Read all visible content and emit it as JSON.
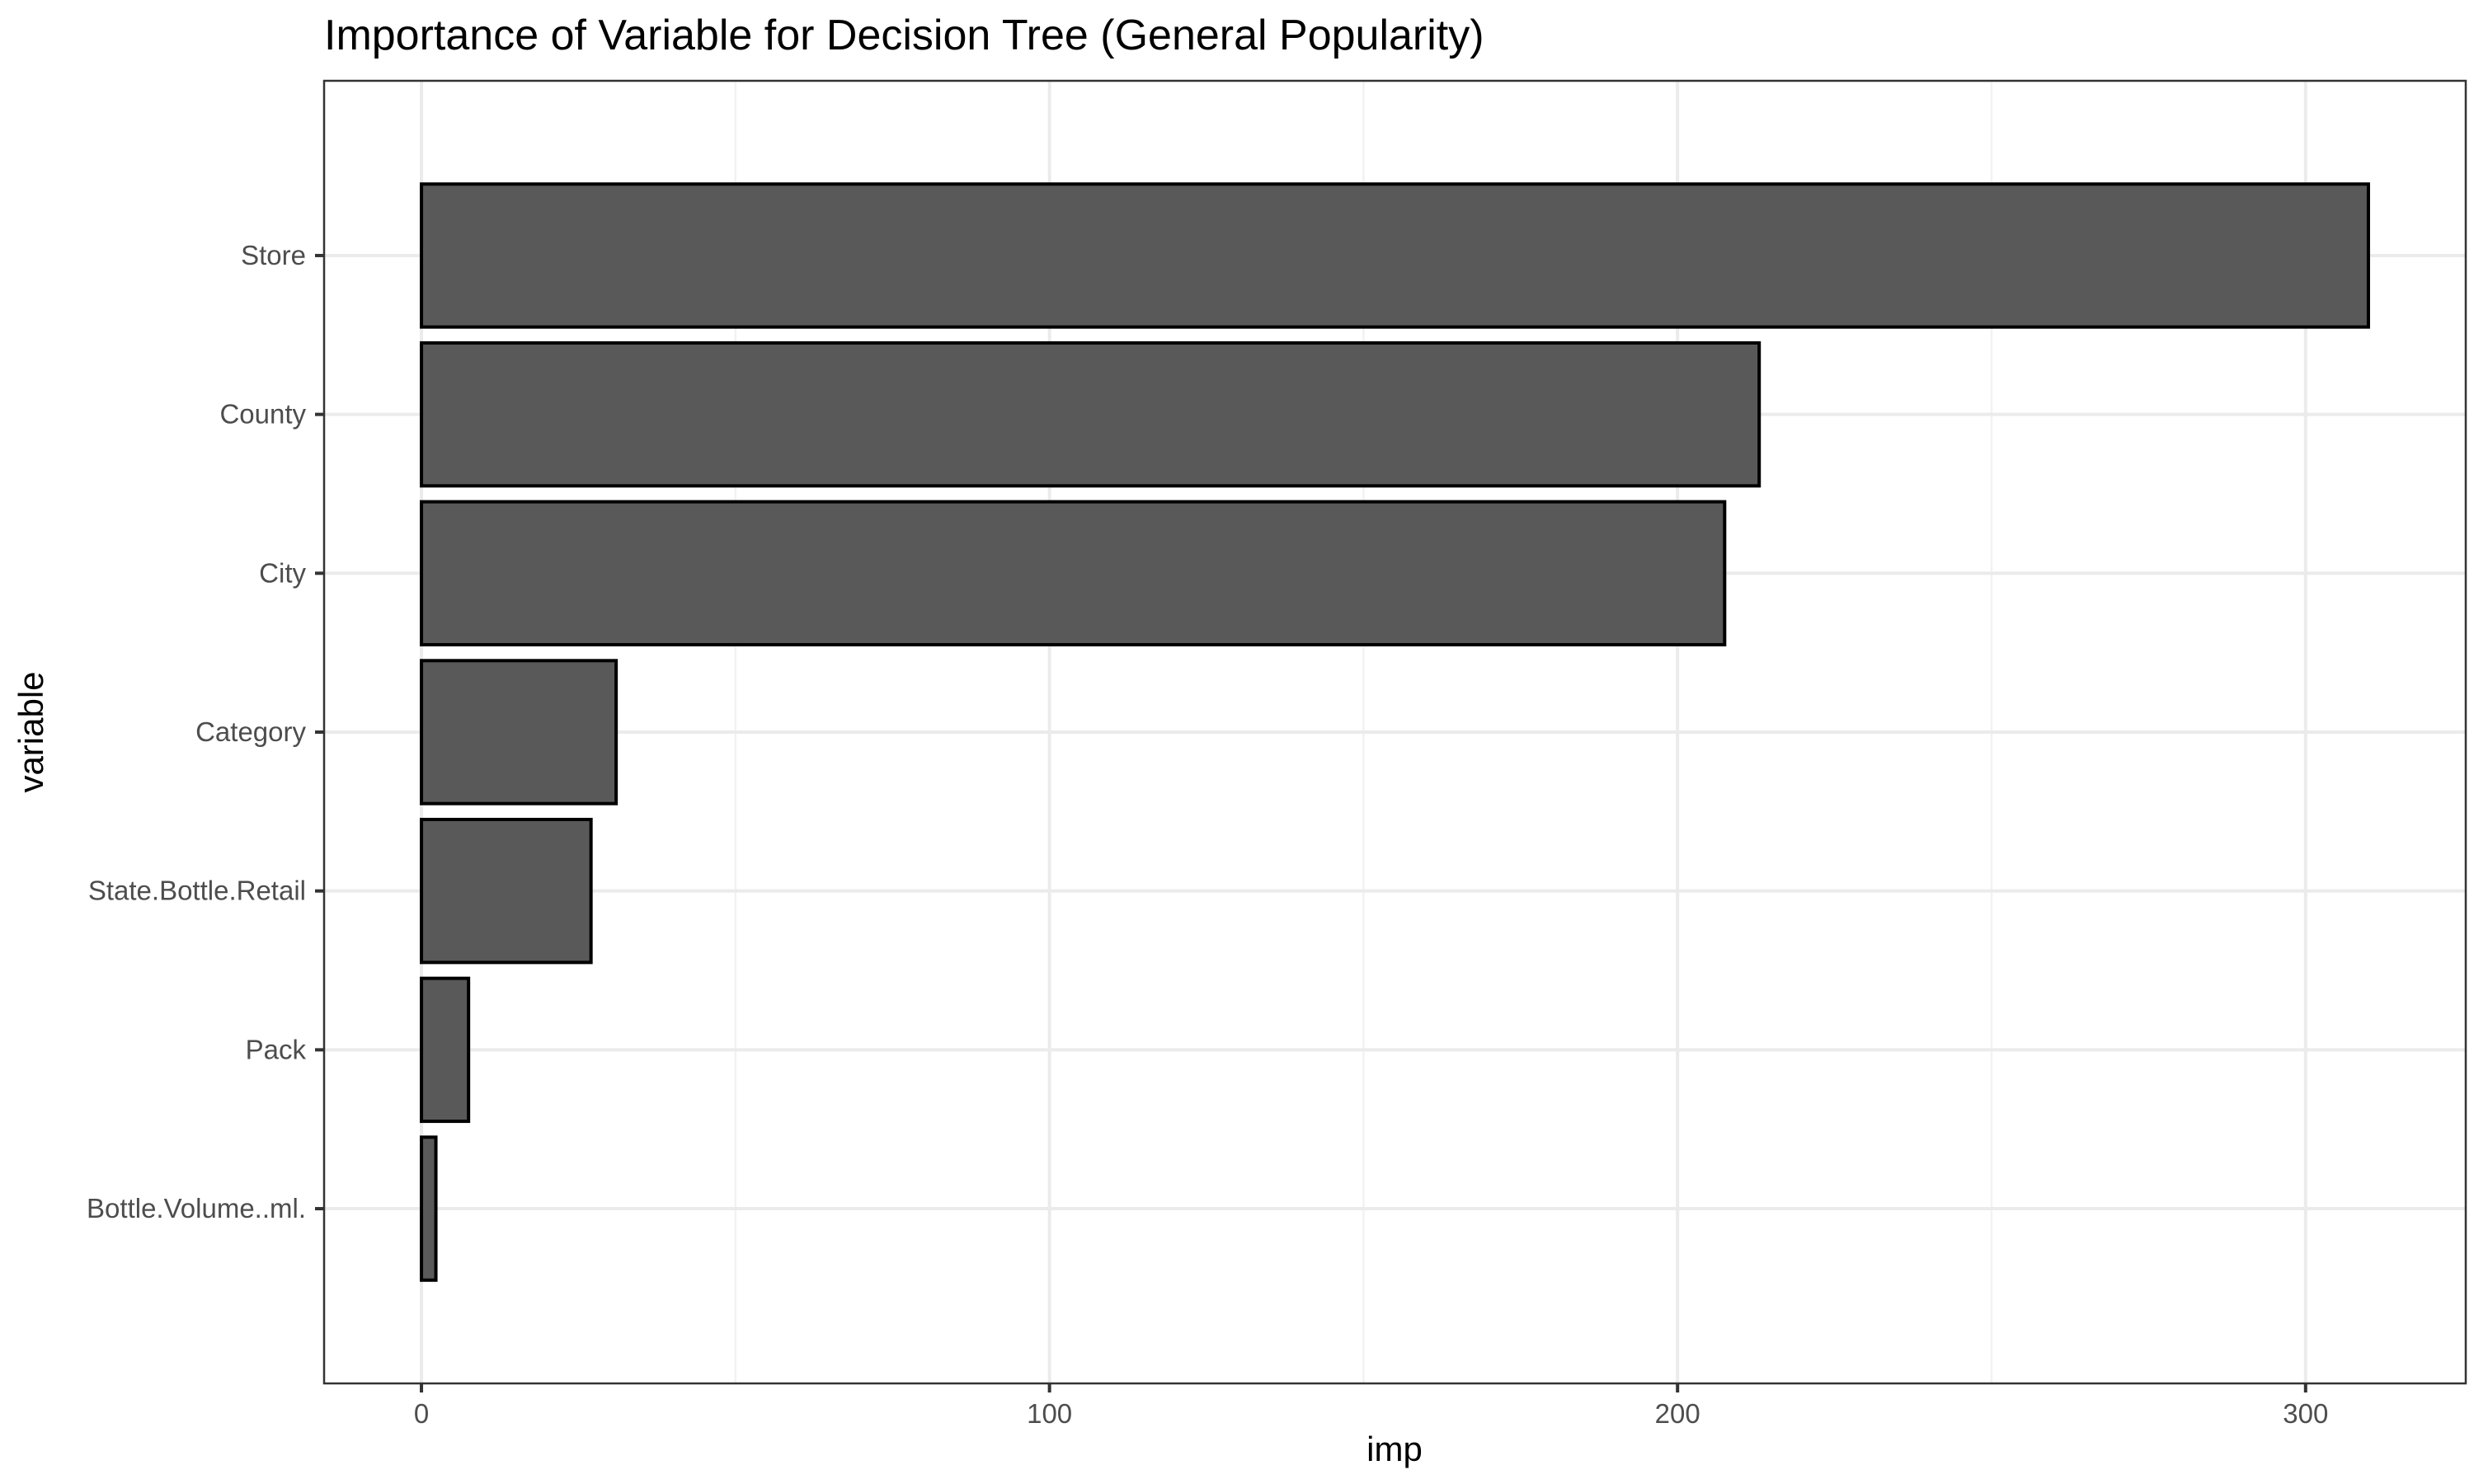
{
  "chart_data": {
    "type": "bar",
    "orientation": "horizontal",
    "title": "Importance of Variable for Decision Tree (General Popularity)",
    "xlabel": "imp",
    "ylabel": "variable",
    "categories": [
      "Store",
      "County",
      "City",
      "Category",
      "State.Bottle.Retail",
      "Pack",
      "Bottle.Volume..ml."
    ],
    "values": [
      310,
      213,
      207.5,
      31,
      27,
      7.5,
      2.3
    ],
    "xlim": [
      -15.5,
      325.5
    ],
    "xticks": [
      0,
      100,
      200,
      300
    ],
    "xtick_labels": [
      "0",
      "100",
      "200",
      "300"
    ],
    "x_minor_ticks": [
      50,
      150,
      250
    ],
    "grid": true,
    "legend": "none",
    "colors": {
      "bar_fill": "#595959",
      "bar_stroke": "#000000",
      "grid_major": "#ebebeb",
      "grid_minor": "#f2f2f2",
      "panel_border": "#333333",
      "tick_label": "#4d4d4d"
    }
  }
}
